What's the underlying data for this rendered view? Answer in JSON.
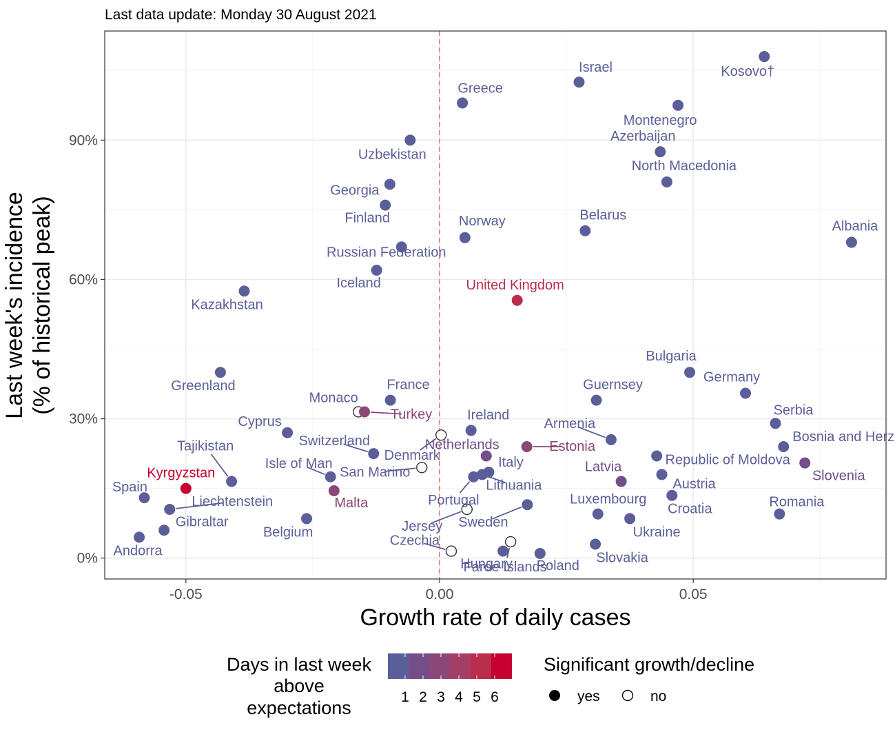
{
  "chart_data": {
    "type": "scatter",
    "subtitle": "Last data update: Monday 30 August 2021",
    "title": "",
    "xlabel": "Growth rate of daily cases",
    "ylabel_line1": "Last week's incidence",
    "ylabel_line2": "(% of historical peak)",
    "xlim": [
      -0.066,
      0.088
    ],
    "ylim": [
      -4.5,
      113.5
    ],
    "x_ticks": [
      -0.05,
      0.0,
      0.05
    ],
    "x_tick_labels": [
      "-0.05",
      "0.00",
      "0.05"
    ],
    "y_ticks": [
      0,
      30,
      60,
      90
    ],
    "y_tick_labels": [
      "0%",
      "30%",
      "60%",
      "90%"
    ],
    "reference_line": {
      "x": 0,
      "style": "dashed",
      "color": "#e8756b"
    },
    "grid": true,
    "legend_position": "bottom",
    "legend_color": {
      "title_line1": "Days in last week",
      "title_line2": "above",
      "title_line3": "expectations",
      "tick_labels": [
        "1",
        "2",
        "3",
        "4",
        "5",
        "6"
      ],
      "colors": [
        "#5b5f99",
        "#734e88",
        "#8b4777",
        "#a33f66",
        "#bb2d4c",
        "#c6002f"
      ]
    },
    "legend_shape": {
      "title": "Significant growth/decline",
      "items": [
        {
          "label": "yes",
          "filled": true
        },
        {
          "label": "no",
          "filled": false
        }
      ]
    },
    "points": [
      {
        "name": "Kosovo†",
        "x": 0.064,
        "y": 108.0,
        "days": 1,
        "significant": true
      },
      {
        "name": "Israel",
        "x": 0.0275,
        "y": 102.5,
        "days": 1,
        "significant": true
      },
      {
        "name": "Greece",
        "x": 0.0045,
        "y": 98.0,
        "days": 1,
        "significant": true
      },
      {
        "name": "Montenegro",
        "x": 0.047,
        "y": 97.5,
        "days": 1,
        "significant": true
      },
      {
        "name": "Uzbekistan",
        "x": -0.0058,
        "y": 90.0,
        "days": 1,
        "significant": true
      },
      {
        "name": "Azerbaijan",
        "x": 0.0435,
        "y": 87.5,
        "days": 1,
        "significant": true
      },
      {
        "name": "North Macedonia",
        "x": 0.0448,
        "y": 81.0,
        "days": 1,
        "significant": true
      },
      {
        "name": "Georgia",
        "x": -0.0098,
        "y": 80.5,
        "days": 1,
        "significant": true
      },
      {
        "name": "Finland",
        "x": -0.0107,
        "y": 76.0,
        "days": 1,
        "significant": true
      },
      {
        "name": "Belarus",
        "x": 0.0287,
        "y": 70.5,
        "days": 1,
        "significant": true
      },
      {
        "name": "Norway",
        "x": 0.005,
        "y": 69.0,
        "days": 1,
        "significant": true
      },
      {
        "name": "Albania",
        "x": 0.0812,
        "y": 68.0,
        "days": 1,
        "significant": true
      },
      {
        "name": "Russian Federation",
        "x": -0.0075,
        "y": 67.0,
        "days": 1,
        "significant": true
      },
      {
        "name": "Iceland",
        "x": -0.0124,
        "y": 62.0,
        "days": 1,
        "significant": true
      },
      {
        "name": "Kazakhstan",
        "x": -0.0385,
        "y": 57.5,
        "days": 1,
        "significant": true
      },
      {
        "name": "United Kingdom",
        "x": 0.0153,
        "y": 55.5,
        "days": 5,
        "significant": true
      },
      {
        "name": "Bulgaria",
        "x": 0.0493,
        "y": 40.0,
        "days": 1,
        "significant": true
      },
      {
        "name": "Greenland",
        "x": -0.0432,
        "y": 40.0,
        "days": 1,
        "significant": true
      },
      {
        "name": "Germany",
        "x": 0.0603,
        "y": 35.5,
        "days": 1,
        "significant": true
      },
      {
        "name": "France",
        "x": -0.0097,
        "y": 34.0,
        "days": 1,
        "significant": true
      },
      {
        "name": "Guernsey",
        "x": 0.0309,
        "y": 34.0,
        "days": 1,
        "significant": true
      },
      {
        "name": "Monaco",
        "x": -0.016,
        "y": 31.5,
        "days": 1,
        "significant": false
      },
      {
        "name": "Turkey",
        "x": -0.0148,
        "y": 31.5,
        "days": 3,
        "significant": true
      },
      {
        "name": "Serbia",
        "x": 0.0662,
        "y": 29.0,
        "days": 1,
        "significant": true
      },
      {
        "name": "Ireland",
        "x": 0.0062,
        "y": 27.5,
        "days": 1,
        "significant": true
      },
      {
        "name": "Cyprus",
        "x": -0.03,
        "y": 27.0,
        "days": 1,
        "significant": true
      },
      {
        "name": "Armenia",
        "x": 0.0338,
        "y": 25.5,
        "days": 1,
        "significant": true
      },
      {
        "name": "Bosnia and Herzegovina",
        "x": 0.0678,
        "y": 24.0,
        "days": 1,
        "significant": true
      },
      {
        "name": "Estonia",
        "x": 0.0172,
        "y": 24.0,
        "days": 3,
        "significant": true
      },
      {
        "name": "Denmark",
        "x": 0.0003,
        "y": 26.5,
        "days": 1,
        "significant": false
      },
      {
        "name": "Switzerland",
        "x": -0.013,
        "y": 22.5,
        "days": 1,
        "significant": true
      },
      {
        "name": "Netherlands",
        "x": 0.0092,
        "y": 22.0,
        "days": 2,
        "significant": true
      },
      {
        "name": "Republic of Moldova",
        "x": 0.0428,
        "y": 22.0,
        "days": 1,
        "significant": true
      },
      {
        "name": "Slovenia",
        "x": 0.072,
        "y": 20.5,
        "days": 2,
        "significant": true
      },
      {
        "name": "Isle of Man",
        "x": -0.0215,
        "y": 17.5,
        "days": 1,
        "significant": true
      },
      {
        "name": "San Marino",
        "x": -0.0035,
        "y": 19.5,
        "days": 1,
        "significant": false
      },
      {
        "name": "Italy",
        "x": 0.0097,
        "y": 18.5,
        "days": 1,
        "significant": true
      },
      {
        "name": "Lithuania",
        "x": 0.0084,
        "y": 18.0,
        "days": 1,
        "significant": true
      },
      {
        "name": "Portugal",
        "x": 0.0067,
        "y": 17.5,
        "days": 1,
        "significant": true
      },
      {
        "name": "Austria",
        "x": 0.0438,
        "y": 18.0,
        "days": 1,
        "significant": true
      },
      {
        "name": "Latvia",
        "x": 0.0358,
        "y": 16.5,
        "days": 2,
        "significant": true
      },
      {
        "name": "Tajikistan",
        "x": -0.041,
        "y": 16.5,
        "days": 1,
        "significant": true
      },
      {
        "name": "Kyrgyzstan",
        "x": -0.05,
        "y": 15.0,
        "days": 6,
        "significant": true
      },
      {
        "name": "Malta",
        "x": -0.0208,
        "y": 14.5,
        "days": 3,
        "significant": true
      },
      {
        "name": "Croatia",
        "x": 0.0458,
        "y": 13.5,
        "days": 1,
        "significant": true
      },
      {
        "name": "Spain",
        "x": -0.0582,
        "y": 13.0,
        "days": 1,
        "significant": true
      },
      {
        "name": "Sweden",
        "x": 0.0173,
        "y": 11.5,
        "days": 1,
        "significant": true
      },
      {
        "name": "Liechtenstein",
        "x": -0.0532,
        "y": 10.5,
        "days": 1,
        "significant": true
      },
      {
        "name": "Jersey",
        "x": 0.0054,
        "y": 10.5,
        "days": 1,
        "significant": false
      },
      {
        "name": "Romania",
        "x": 0.067,
        "y": 9.5,
        "days": 1,
        "significant": true
      },
      {
        "name": "Luxembourg",
        "x": 0.0312,
        "y": 9.5,
        "days": 1,
        "significant": true
      },
      {
        "name": "Ukraine",
        "x": 0.0375,
        "y": 8.5,
        "days": 1,
        "significant": true
      },
      {
        "name": "Belgium",
        "x": -0.0262,
        "y": 8.5,
        "days": 1,
        "significant": true
      },
      {
        "name": "Gibraltar",
        "x": -0.0543,
        "y": 6.0,
        "days": 1,
        "significant": true
      },
      {
        "name": "Andorra",
        "x": -0.0592,
        "y": 4.5,
        "days": 1,
        "significant": true
      },
      {
        "name": "Faroe Islands",
        "x": 0.014,
        "y": 3.5,
        "days": 1,
        "significant": false
      },
      {
        "name": "Slovakia",
        "x": 0.0307,
        "y": 3.0,
        "days": 1,
        "significant": true
      },
      {
        "name": "Czechia",
        "x": 0.0023,
        "y": 1.5,
        "days": 1,
        "significant": false
      },
      {
        "name": "Hungary",
        "x": 0.0125,
        "y": 1.5,
        "days": 1,
        "significant": true
      },
      {
        "name": "Poland",
        "x": 0.0198,
        "y": 1.0,
        "days": 1,
        "significant": true
      }
    ]
  }
}
